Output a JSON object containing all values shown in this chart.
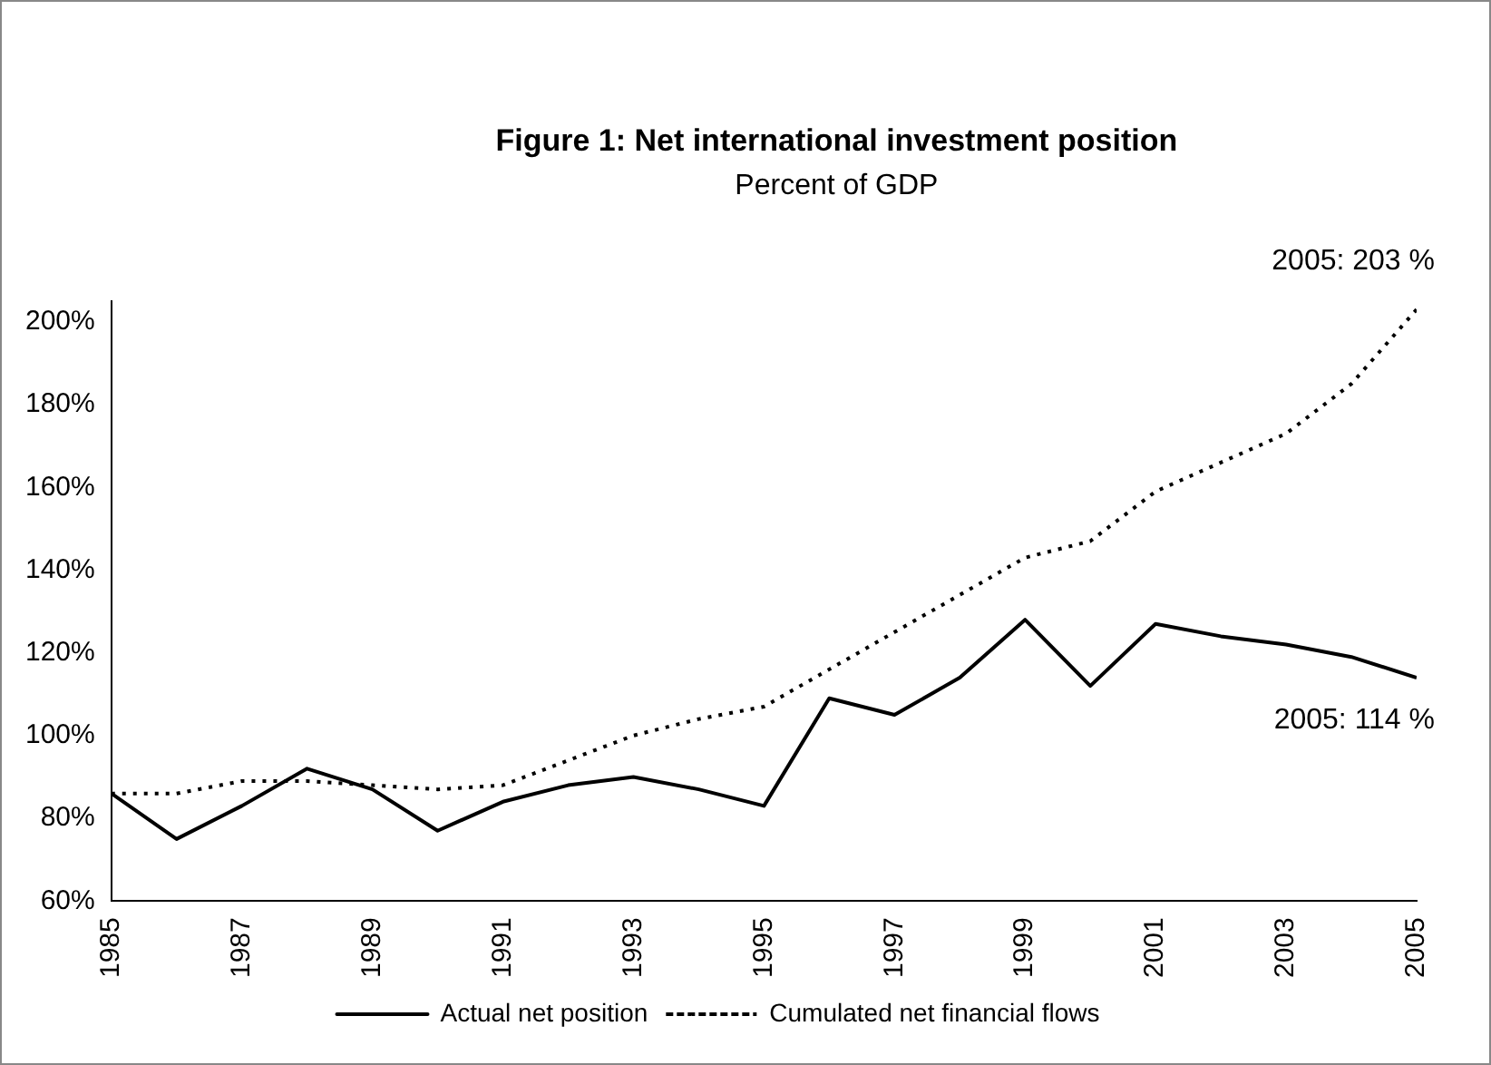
{
  "chart_data": {
    "type": "line",
    "title": "Figure 1: Net international investment position",
    "subtitle": "Percent of GDP",
    "x": [
      1985,
      1986,
      1987,
      1988,
      1989,
      1990,
      1991,
      1992,
      1993,
      1994,
      1995,
      1996,
      1997,
      1998,
      1999,
      2000,
      2001,
      2002,
      2003,
      2004,
      2005
    ],
    "series": [
      {
        "name": "Actual net position",
        "color": "#000000",
        "line_style": "solid",
        "values": [
          86,
          75,
          83,
          92,
          87,
          77,
          84,
          88,
          90,
          87,
          83,
          109,
          105,
          114,
          128,
          112,
          127,
          124,
          122,
          119,
          114
        ]
      },
      {
        "name": "Cumulated net financial flows",
        "color": "#000000",
        "line_style": "dotted",
        "values": [
          86,
          86,
          89,
          89,
          88,
          87,
          88,
          94,
          100,
          104,
          107,
          116,
          125,
          134,
          143,
          147,
          159,
          166,
          173,
          185,
          203
        ]
      }
    ],
    "xlim": [
      1985,
      2005
    ],
    "xticks": [
      1985,
      1987,
      1989,
      1991,
      1993,
      1995,
      1997,
      1999,
      2001,
      2003,
      2005
    ],
    "ylim": [
      60,
      205
    ],
    "yticks": [
      {
        "value": 60,
        "label": "60%"
      },
      {
        "value": 80,
        "label": "80%"
      },
      {
        "value": 100,
        "label": "100%"
      },
      {
        "value": 120,
        "label": "120%"
      },
      {
        "value": 140,
        "label": "140%"
      },
      {
        "value": 160,
        "label": "160%"
      },
      {
        "value": 180,
        "label": "180%"
      },
      {
        "value": 200,
        "label": "200%"
      }
    ],
    "annotations": [
      {
        "text": "2005: 203 %",
        "x": 2005,
        "y": 203
      },
      {
        "text": "2005: 114 %",
        "x": 2005,
        "y": 114
      }
    ],
    "grid": false,
    "legend": "bottom",
    "marker": "none"
  }
}
